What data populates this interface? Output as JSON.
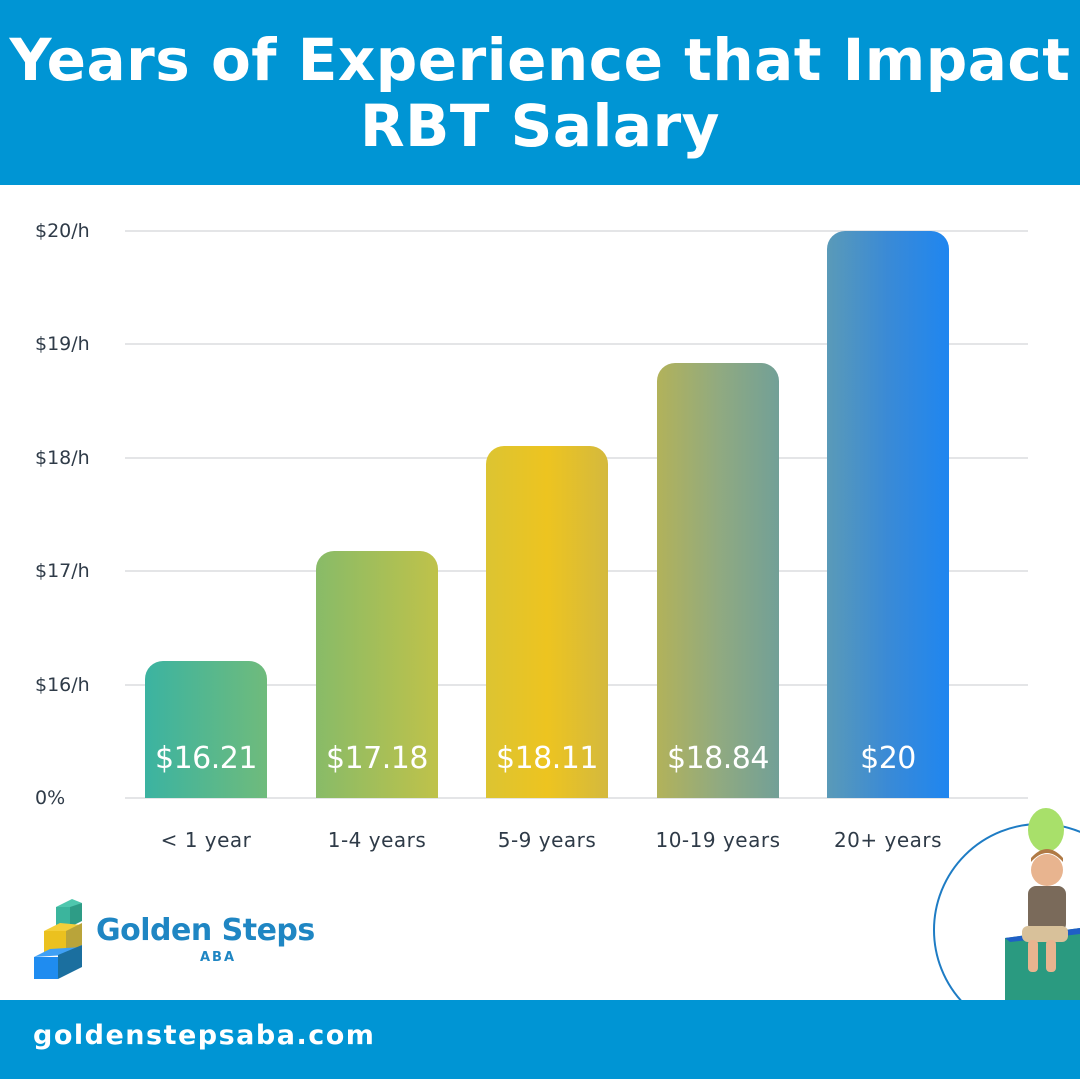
{
  "header": {
    "title_line1": "Years of Experience that Impact",
    "title_line2": "RBT Salary"
  },
  "colors": {
    "header_bg": "#0095d4",
    "footer_bg": "#0095d4",
    "gridline": "#e4e5e7",
    "axis_text": "#2f3b48",
    "logo_blue": "#1f86c3"
  },
  "chart_data": {
    "type": "bar",
    "title": "Years of Experience that Impact RBT Salary",
    "xlabel": "",
    "ylabel": "",
    "categories": [
      "< 1 year",
      "1-4 years",
      "5-9 years",
      "10-19 years",
      "20+ years"
    ],
    "values": [
      16.21,
      17.18,
      18.11,
      18.84,
      20
    ],
    "value_labels": [
      "$16.21",
      "$17.18",
      "$18.11",
      "$18.84",
      "$20"
    ],
    "y_tick_labels": [
      "0%",
      "$16/h",
      "$17/h",
      "$18/h",
      "$19/h",
      "$20/h"
    ],
    "ylim": [
      15,
      20
    ],
    "grid": true,
    "legend": null,
    "bar_gradients": [
      [
        "#3bb3a1",
        "#6fbb7c"
      ],
      [
        "#88bb68",
        "#bfc24a"
      ],
      [
        "#dcc432",
        "#edc420",
        "#d4b93e"
      ],
      [
        "#b2b25a",
        "#91aa80",
        "#72a097"
      ],
      [
        "#5a9ab8",
        "#3a8ad6",
        "#1f86f0"
      ]
    ]
  },
  "logo": {
    "name": "Golden Steps",
    "sub": "ABA"
  },
  "footer": {
    "url": "goldenstepsaba.com"
  },
  "decor": {
    "illustration": "child-sitting-on-block-with-balloon"
  }
}
